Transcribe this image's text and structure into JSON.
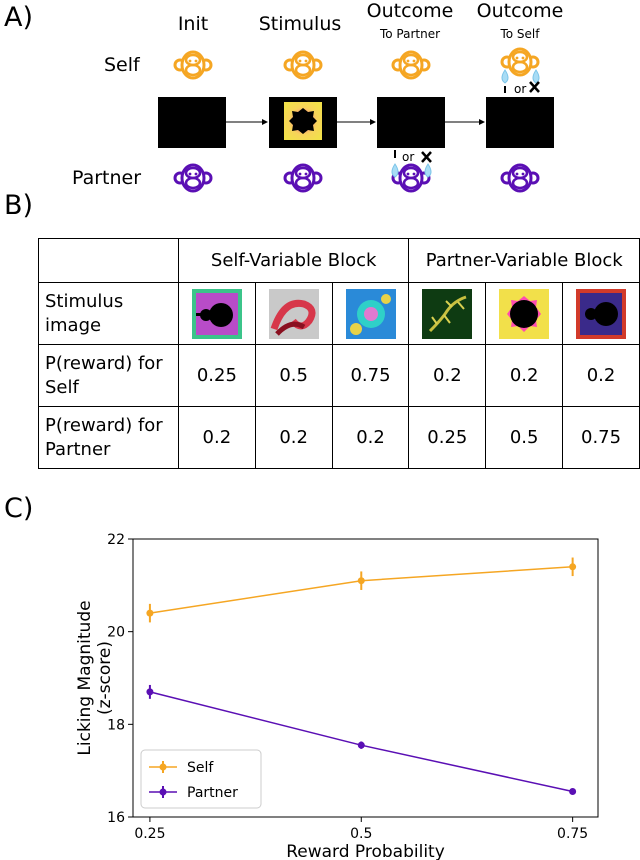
{
  "panels": {
    "a": "A)",
    "b": "B)",
    "c": "C)"
  },
  "task": {
    "stages": [
      {
        "title": "Init",
        "sub": ""
      },
      {
        "title": "Stimulus",
        "sub": ""
      },
      {
        "title": "Outcome",
        "sub": "To Partner"
      },
      {
        "title": "Outcome",
        "sub": "To Self"
      }
    ],
    "self_label": "Self",
    "partner_label": "Partner",
    "or_text": "or",
    "colors": {
      "self": "#f5a623",
      "partner": "#5a0fb4",
      "drop": "#a8dcf5"
    }
  },
  "table": {
    "block_headers": [
      "Self-Variable Block",
      "Partner-Variable Block"
    ],
    "rows": [
      {
        "label": "Stimulus image",
        "values": []
      },
      {
        "label": "P(reward) for Self",
        "values": [
          "0.25",
          "0.5",
          "0.75",
          "0.2",
          "0.2",
          "0.2"
        ]
      },
      {
        "label": "P(reward) for Partner",
        "values": [
          "0.2",
          "0.2",
          "0.2",
          "0.25",
          "0.5",
          "0.75"
        ]
      }
    ],
    "stimulus_icons": [
      "fractal-green-icon",
      "fractal-spiral-icon",
      "fractal-blue-icon",
      "fractal-fern-icon",
      "fractal-yellow-icon",
      "fractal-purple-icon"
    ]
  },
  "chart_data": {
    "type": "line",
    "title": "",
    "xlabel": "Reward Probability",
    "ylabel": "Licking Magnitude\n(z-score)",
    "x": [
      0.25,
      0.5,
      0.75
    ],
    "xticks": [
      "0.25",
      "0.5",
      "0.75"
    ],
    "yticks": [
      "16",
      "18",
      "20",
      "22"
    ],
    "ylim": [
      16,
      22
    ],
    "xlim": [
      0.23,
      0.78
    ],
    "legend_position": "bottom-left",
    "series": [
      {
        "name": "Self",
        "values": [
          20.4,
          21.1,
          21.4
        ],
        "err": [
          0.2,
          0.2,
          0.2
        ],
        "color": "#f5a623"
      },
      {
        "name": "Partner",
        "values": [
          18.7,
          17.55,
          16.55
        ],
        "err": [
          0.15,
          0.08,
          0.04
        ],
        "color": "#5a0fb4"
      }
    ]
  }
}
